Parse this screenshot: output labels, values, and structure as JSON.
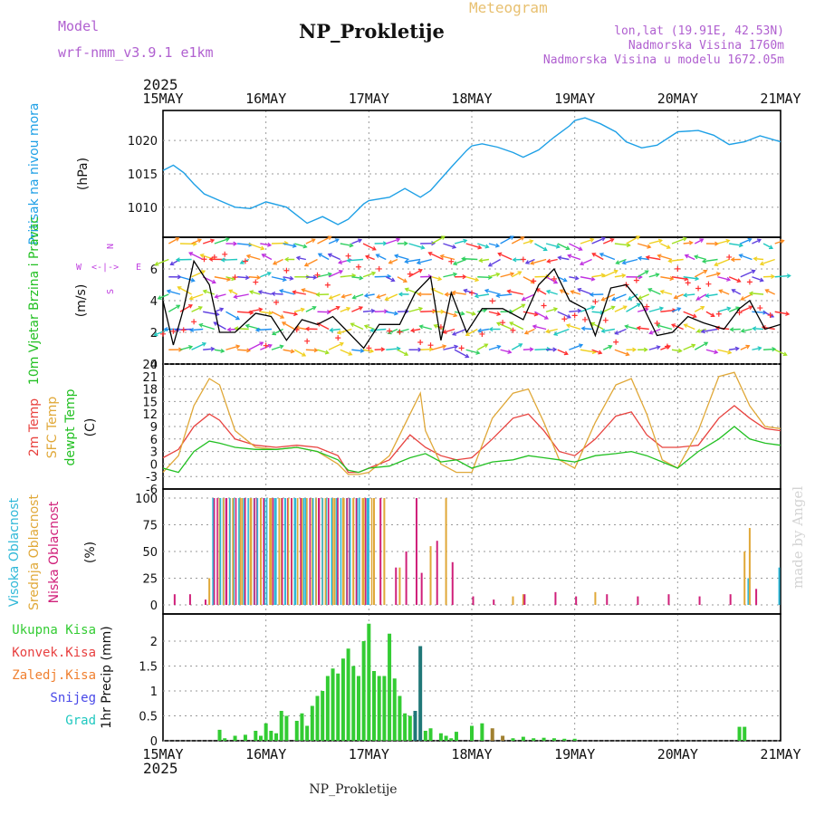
{
  "header": {
    "model_label": "Model",
    "model_name": "wrf-nmm_v3.9.1  e1km",
    "title": "NP_Prokletije",
    "subtitle": "Meteogram",
    "lonlat": "lon,lat (19.91E, 42.53N)",
    "elevation": "Nadmorska Visina 1760m",
    "model_elevation": "Nadmorska Visina u modelu 1672.05m",
    "footer_station": "NP_Prokletije",
    "watermark": "made by Angel",
    "year_top": "2025",
    "year_bottom": "2025"
  },
  "colors": {
    "pressure": "#1ea0e6",
    "temp2m": "#e8433f",
    "sfc_temp": "#e0a838",
    "dewpt": "#22c022",
    "cloud_high": "#30b8d8",
    "cloud_mid": "#e0a838",
    "cloud_low": "#d0207a",
    "precip_total": "#33cc33",
    "precip_conv": "#e84040",
    "precip_strat": "#f08030",
    "snow": "#4848e8",
    "hail": "#20c8c0",
    "wind_label": "#22c022",
    "wind_label2": "#22c022",
    "compass": "#c040e0"
  },
  "chart_data": [
    {
      "type": "line",
      "panel": "pressure",
      "x_ticks": [
        "15MAY",
        "16MAY",
        "17MAY",
        "18MAY",
        "19MAY",
        "20MAY",
        "21MAY"
      ],
      "ylabel": "Pritisak na nivou mora",
      "unit": "(hPa)",
      "ylim": [
        1005.5,
        1024.5
      ],
      "yticks": [
        1010,
        1015,
        1020
      ],
      "series": [
        {
          "name": "",
          "x": [
            0,
            0.1,
            0.2,
            0.3,
            0.4,
            0.55,
            0.7,
            0.85,
            1.0,
            1.2,
            1.3,
            1.4,
            1.55,
            1.7,
            1.8,
            1.95,
            2.0,
            2.2,
            2.35,
            2.5,
            2.6,
            2.8,
            2.95,
            3.0,
            3.1,
            3.25,
            3.4,
            3.5,
            3.65,
            3.8,
            3.95,
            4.0,
            4.1,
            4.25,
            4.4,
            4.5,
            4.65,
            4.8,
            5.0,
            5.2,
            5.35,
            5.5,
            5.65,
            5.8,
            6.0
          ],
          "values": [
            1015.5,
            1016.3,
            1015.2,
            1013.5,
            1012.0,
            1011.0,
            1010.0,
            1009.8,
            1010.8,
            1010.0,
            1008.8,
            1007.6,
            1008.6,
            1007.4,
            1008.2,
            1010.5,
            1011.0,
            1011.5,
            1012.8,
            1011.5,
            1012.5,
            1016.0,
            1018.5,
            1019.2,
            1019.5,
            1019.0,
            1018.2,
            1017.5,
            1018.6,
            1020.5,
            1022.2,
            1023.0,
            1023.4,
            1022.5,
            1021.3,
            1019.8,
            1018.9,
            1019.3,
            1021.3,
            1021.5,
            1020.8,
            1019.4,
            1019.8,
            1020.7,
            1019.8
          ]
        }
      ]
    },
    {
      "type": "line",
      "panel": "wind",
      "x_ticks": [
        "15MAY",
        "16MAY",
        "17MAY",
        "18MAY",
        "19MAY",
        "20MAY",
        "21MAY"
      ],
      "ylabel": "10m Vjetar Brzina i Pravac",
      "unit": "(m/s)",
      "ylim": [
        0,
        8
      ],
      "yticks": [
        0,
        2,
        4,
        6
      ],
      "compass": {
        "n": "N",
        "w": "W",
        "e": "E",
        "s": "S",
        "arrows": "<-|->"
      },
      "series": [
        {
          "name": "",
          "x": [
            0,
            0.1,
            0.2,
            0.3,
            0.45,
            0.55,
            0.7,
            0.9,
            1.05,
            1.2,
            1.35,
            1.5,
            1.65,
            1.8,
            1.95,
            2.1,
            2.3,
            2.45,
            2.6,
            2.7,
            2.8,
            2.95,
            3.1,
            3.3,
            3.5,
            3.65,
            3.8,
            3.95,
            4.1,
            4.2,
            4.35,
            4.5,
            4.65,
            4.8,
            4.95,
            5.1,
            5.25,
            5.45,
            5.6,
            5.7,
            5.85,
            6.0
          ],
          "values": [
            4.0,
            1.2,
            3.5,
            6.5,
            5.0,
            2.0,
            2.0,
            3.2,
            3.0,
            1.5,
            2.8,
            2.5,
            3.0,
            2.0,
            1.0,
            2.5,
            2.5,
            4.5,
            5.5,
            1.5,
            4.5,
            2.0,
            3.5,
            3.5,
            2.8,
            5.0,
            6.0,
            4.0,
            3.5,
            1.8,
            4.8,
            5.0,
            3.8,
            1.8,
            2.0,
            3.0,
            2.6,
            2.2,
            3.5,
            4.0,
            2.2,
            2.5
          ]
        }
      ]
    },
    {
      "type": "line",
      "panel": "temperature",
      "x_ticks": [
        "15MAY",
        "16MAY",
        "17MAY",
        "18MAY",
        "19MAY",
        "20MAY",
        "21MAY"
      ],
      "ylabels": [
        "2m Temp",
        "SFC Temp",
        "dewpt Temp"
      ],
      "unit": "(C)",
      "ylim": [
        -6,
        24
      ],
      "yticks": [
        -6,
        -3,
        0,
        3,
        6,
        9,
        12,
        15,
        18,
        21,
        24
      ],
      "series": [
        {
          "name": "2m Temp",
          "x": [
            0,
            0.15,
            0.3,
            0.45,
            0.55,
            0.7,
            0.9,
            1.1,
            1.3,
            1.5,
            1.7,
            1.8,
            1.9,
            2.0,
            2.2,
            2.4,
            2.55,
            2.7,
            2.85,
            3.0,
            3.2,
            3.4,
            3.55,
            3.7,
            3.85,
            4.0,
            4.2,
            4.4,
            4.55,
            4.7,
            4.85,
            5.0,
            5.2,
            5.4,
            5.55,
            5.7,
            5.85,
            6.0
          ],
          "values": [
            1.5,
            3.5,
            9.0,
            12.0,
            10.5,
            6.0,
            4.5,
            4.0,
            4.5,
            4.0,
            2.0,
            -2.0,
            -2.0,
            -1.0,
            1.0,
            7.0,
            4.0,
            2.0,
            1.0,
            1.5,
            6.0,
            11.0,
            12.0,
            8.0,
            3.0,
            2.0,
            6.0,
            11.5,
            12.5,
            7.0,
            4.0,
            4.0,
            4.5,
            11.0,
            14.0,
            11.0,
            8.5,
            8.0
          ]
        },
        {
          "name": "SFC Temp",
          "x": [
            0,
            0.15,
            0.3,
            0.45,
            0.55,
            0.7,
            0.9,
            1.1,
            1.3,
            1.5,
            1.7,
            1.8,
            1.9,
            2.0,
            2.2,
            2.4,
            2.5,
            2.55,
            2.7,
            2.85,
            3.0,
            3.2,
            3.4,
            3.55,
            3.7,
            3.85,
            4.0,
            4.2,
            4.4,
            4.55,
            4.7,
            4.85,
            5.0,
            5.2,
            5.4,
            5.55,
            5.7,
            5.85,
            6.0
          ],
          "values": [
            -2.0,
            2.0,
            14.0,
            20.5,
            19.0,
            8.0,
            4.0,
            3.5,
            4.0,
            3.0,
            0.0,
            -2.5,
            -2.5,
            -2.0,
            2.0,
            12.0,
            17.0,
            8.0,
            0.0,
            -2.0,
            -2.0,
            11.0,
            17.0,
            18.0,
            10.0,
            1.0,
            -1.0,
            10.0,
            19.0,
            20.5,
            12.0,
            1.0,
            -1.0,
            8.0,
            21.0,
            22.0,
            14.0,
            9.0,
            8.5
          ]
        },
        {
          "name": "dewpt Temp",
          "x": [
            0,
            0.15,
            0.3,
            0.45,
            0.55,
            0.7,
            0.9,
            1.1,
            1.3,
            1.5,
            1.7,
            1.8,
            1.9,
            2.0,
            2.2,
            2.4,
            2.55,
            2.7,
            2.85,
            3.0,
            3.2,
            3.4,
            3.55,
            3.7,
            3.85,
            4.0,
            4.2,
            4.4,
            4.55,
            4.7,
            4.85,
            5.0,
            5.2,
            5.4,
            5.55,
            5.7,
            5.85,
            6.0
          ],
          "values": [
            -1.0,
            -2.0,
            3.0,
            5.5,
            5.0,
            4.0,
            3.5,
            3.5,
            4.0,
            3.0,
            1.0,
            -1.5,
            -2.0,
            -1.0,
            -0.5,
            1.5,
            2.5,
            0.5,
            1.0,
            -1.0,
            0.5,
            1.0,
            2.0,
            1.5,
            1.0,
            0.5,
            2.0,
            2.5,
            3.0,
            2.0,
            0.5,
            -1.0,
            3.0,
            6.0,
            9.0,
            6.0,
            5.0,
            4.5
          ]
        }
      ]
    },
    {
      "type": "bar",
      "panel": "clouds",
      "x_ticks": [
        "15MAY",
        "16MAY",
        "17MAY",
        "18MAY",
        "19MAY",
        "20MAY",
        "21MAY"
      ],
      "ylabels": [
        "Visoka Oblacnost",
        "Srednja Oblacnost",
        "Niska Oblacnost"
      ],
      "unit": "(%)",
      "ylim": [
        0,
        100
      ],
      "yticks": [
        0,
        25,
        50,
        75,
        100
      ],
      "series": [
        {
          "name": "Visoka Oblacnost",
          "x": [
            0.5,
            0.6,
            0.7,
            0.8,
            0.9,
            1.0,
            1.1,
            1.2,
            1.3,
            1.4,
            1.5,
            1.6,
            1.7,
            1.8,
            1.9,
            2.0,
            5.7,
            6.0
          ],
          "values": [
            100,
            100,
            100,
            100,
            100,
            100,
            100,
            100,
            100,
            100,
            100,
            100,
            100,
            100,
            100,
            100,
            25,
            35
          ]
        },
        {
          "name": "Srednja Oblacnost",
          "x": [
            0.45,
            0.55,
            0.65,
            0.75,
            0.85,
            0.95,
            1.05,
            1.15,
            1.25,
            1.35,
            1.45,
            1.55,
            1.65,
            1.75,
            1.85,
            1.95,
            2.05,
            2.15,
            2.3,
            2.6,
            2.75,
            3.4,
            3.5,
            4.2,
            5.65,
            5.7
          ],
          "values": [
            25,
            100,
            100,
            100,
            100,
            100,
            100,
            100,
            100,
            100,
            100,
            100,
            100,
            100,
            100,
            100,
            100,
            100,
            35,
            55,
            100,
            8,
            10,
            12,
            50,
            72
          ]
        },
        {
          "name": "Niska Oblacnost",
          "x": [
            0.1,
            0.25,
            0.4,
            0.6,
            0.9,
            1.2,
            1.5,
            1.8,
            2.1,
            2.25,
            2.35,
            2.45,
            2.5,
            2.65,
            2.8,
            3.0,
            3.2,
            3.5,
            3.8,
            4.0,
            4.3,
            4.6,
            4.9,
            5.2,
            5.5,
            5.75
          ],
          "values": [
            10,
            10,
            5,
            100,
            100,
            100,
            100,
            100,
            100,
            35,
            50,
            100,
            30,
            60,
            40,
            8,
            5,
            10,
            12,
            8,
            10,
            8,
            10,
            8,
            10,
            15
          ]
        }
      ]
    },
    {
      "type": "bar",
      "panel": "precip",
      "x_ticks": [
        "15MAY",
        "16MAY",
        "17MAY",
        "18MAY",
        "19MAY",
        "20MAY",
        "21MAY"
      ],
      "ylabel": "1hr Precip (mm)",
      "ylim": [
        0,
        2.4
      ],
      "yticks": [
        0,
        0.5,
        1,
        1.5,
        2
      ],
      "legend": [
        "Ukupna Kisa",
        "Konvek.Kisa",
        "Zaledj.Kisa",
        "Snijeg",
        "Grad"
      ],
      "series": [
        {
          "name": "Ukupna Kisa",
          "x": [
            0.55,
            0.6,
            0.7,
            0.8,
            0.9,
            0.95,
            1.0,
            1.05,
            1.1,
            1.15,
            1.2,
            1.3,
            1.35,
            1.4,
            1.45,
            1.5,
            1.55,
            1.6,
            1.65,
            1.7,
            1.75,
            1.8,
            1.85,
            1.9,
            1.95,
            2.0,
            2.05,
            2.1,
            2.15,
            2.2,
            2.25,
            2.3,
            2.35,
            2.4,
            2.45,
            2.5,
            2.55,
            2.6,
            2.7,
            2.75,
            2.8,
            2.85,
            3.0,
            3.1,
            3.2,
            3.3,
            3.4,
            3.5,
            3.6,
            3.7,
            3.8,
            3.9,
            4.0,
            5.6,
            5.65
          ],
          "values": [
            0.22,
            0.05,
            0.1,
            0.12,
            0.2,
            0.1,
            0.35,
            0.2,
            0.15,
            0.6,
            0.5,
            0.4,
            0.55,
            0.3,
            0.7,
            0.9,
            1.0,
            1.3,
            1.45,
            1.35,
            1.65,
            1.85,
            1.5,
            1.3,
            2.0,
            2.35,
            1.4,
            1.3,
            1.3,
            2.15,
            1.25,
            0.9,
            0.55,
            0.5,
            0.6,
            1.9,
            0.2,
            0.25,
            0.15,
            0.1,
            0.05,
            0.18,
            0.3,
            0.35,
            0.25,
            0.1,
            0.05,
            0.08,
            0.05,
            0.06,
            0.05,
            0.04,
            0.04,
            0.28,
            0.28
          ]
        }
      ]
    }
  ]
}
